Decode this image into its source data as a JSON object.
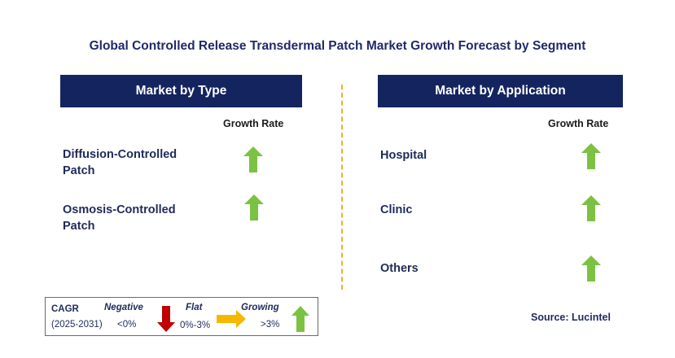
{
  "title": "Global Controlled Release Transdermal Patch Market Growth Forecast by Segment",
  "left_panel": {
    "header": "Market by Type",
    "growth_label": "Growth Rate",
    "items": [
      {
        "label_line1": "Diffusion-Controlled",
        "label_line2": "Patch",
        "trend": "growing"
      },
      {
        "label_line1": "Osmosis-Controlled",
        "label_line2": "Patch",
        "trend": "growing"
      }
    ]
  },
  "right_panel": {
    "header": "Market by Application",
    "growth_label": "Growth Rate",
    "items": [
      {
        "label": "Hospital",
        "trend": "growing"
      },
      {
        "label": "Clinic",
        "trend": "growing"
      },
      {
        "label": "Others",
        "trend": "growing"
      }
    ]
  },
  "legend": {
    "cagr": "CAGR",
    "period": "(2025-2031)",
    "negative": "Negative",
    "negative_range": "<0%",
    "flat": "Flat",
    "flat_range": "0%-3%",
    "growing": "Growing",
    "growing_range": ">3%"
  },
  "source": "Source: Lucintel",
  "colors": {
    "header_bg": "#14245f",
    "growing": "#7cc242",
    "negative": "#c00000",
    "flat": "#f5b800",
    "divider": "#f0b323"
  }
}
